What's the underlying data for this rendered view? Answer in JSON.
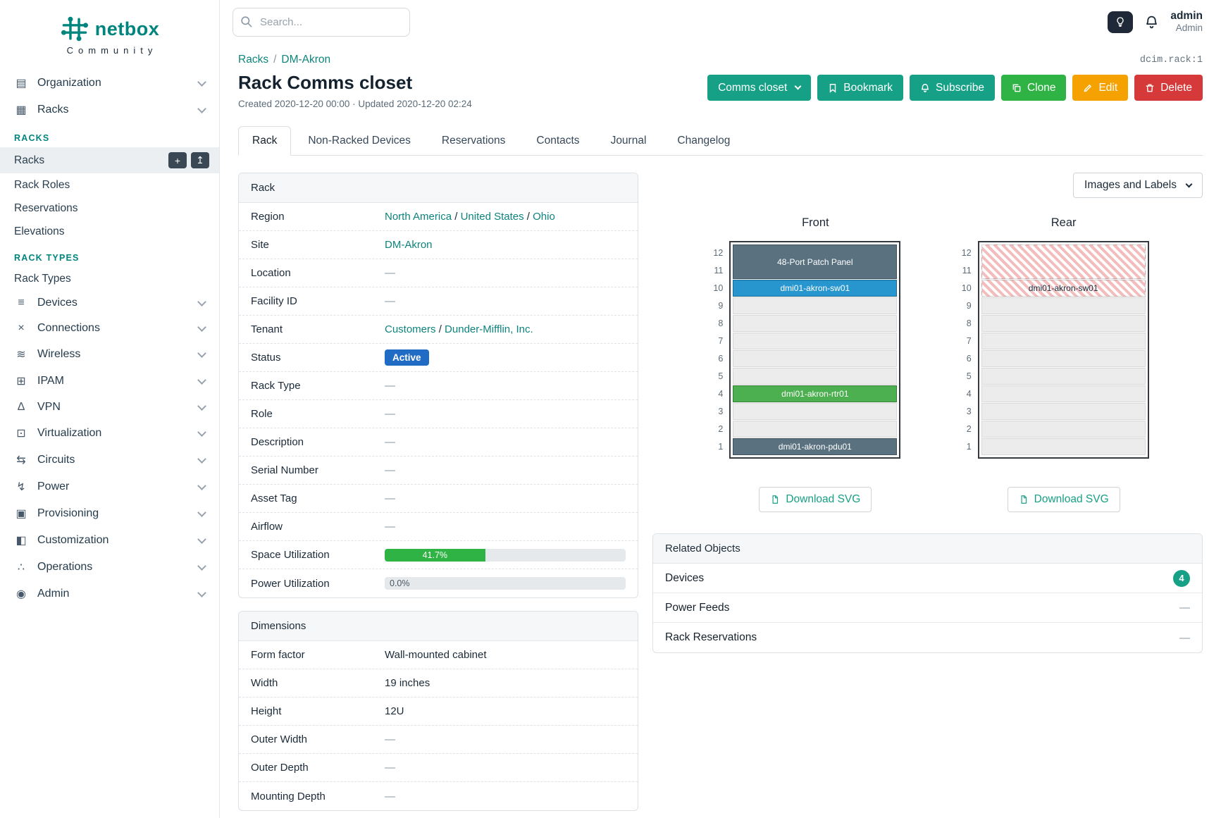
{
  "brand": {
    "name": "netbox",
    "subtitle": "Community"
  },
  "topbar": {
    "search_placeholder": "Search...",
    "user_name": "admin",
    "user_role": "Admin"
  },
  "object_ref": "dcim.rack:1",
  "breadcrumb": {
    "separator": "/",
    "items": [
      {
        "label": "Racks"
      },
      {
        "label": "DM-Akron"
      }
    ]
  },
  "header": {
    "title": "Rack Comms closet",
    "meta": "Created 2020-12-20 00:00 · Updated 2020-12-20 02:24",
    "actions": {
      "context": "Comms closet",
      "bookmark": "Bookmark",
      "subscribe": "Subscribe",
      "clone": "Clone",
      "edit": "Edit",
      "delete": "Delete"
    }
  },
  "tabs": [
    {
      "label": "Rack",
      "active": true
    },
    {
      "label": "Non-Racked Devices"
    },
    {
      "label": "Reservations"
    },
    {
      "label": "Contacts"
    },
    {
      "label": "Journal"
    },
    {
      "label": "Changelog"
    }
  ],
  "icons": {
    "organization-icon": "▤",
    "racks-icon": "▦",
    "devices-icon": "≡",
    "connections-icon": "×",
    "wireless-icon": "≋",
    "ipam-icon": "⊞",
    "vpn-icon": "∆",
    "virtualization-icon": "⊡",
    "circuits-icon": "⇆",
    "power-icon": "↯",
    "provisioning-icon": "▣",
    "customization-icon": "◧",
    "operations-icon": "∴",
    "admin-icon": "◉"
  },
  "sidebar": {
    "items": [
      {
        "icon": "organization-icon",
        "label": "Organization"
      },
      {
        "icon": "racks-icon",
        "label": "Racks",
        "expanded": true,
        "sections": [
          {
            "heading": "RACKS",
            "links": [
              {
                "label": "Racks",
                "active": true,
                "buttons": [
                  "add",
                  "import"
                ]
              },
              {
                "label": "Rack Roles"
              },
              {
                "label": "Reservations"
              },
              {
                "label": "Elevations"
              }
            ]
          },
          {
            "heading": "RACK TYPES",
            "links": [
              {
                "label": "Rack Types"
              }
            ]
          }
        ]
      },
      {
        "icon": "devices-icon",
        "label": "Devices"
      },
      {
        "icon": "connections-icon",
        "label": "Connections"
      },
      {
        "icon": "wireless-icon",
        "label": "Wireless"
      },
      {
        "icon": "ipam-icon",
        "label": "IPAM"
      },
      {
        "icon": "vpn-icon",
        "label": "VPN"
      },
      {
        "icon": "virtualization-icon",
        "label": "Virtualization"
      },
      {
        "icon": "circuits-icon",
        "label": "Circuits"
      },
      {
        "icon": "power-icon",
        "label": "Power"
      },
      {
        "icon": "provisioning-icon",
        "label": "Provisioning"
      },
      {
        "icon": "customization-icon",
        "label": "Customization"
      },
      {
        "icon": "operations-icon",
        "label": "Operations"
      },
      {
        "icon": "admin-icon",
        "label": "Admin"
      }
    ]
  },
  "rack_panel": {
    "title": "Rack",
    "rows": [
      {
        "label": "Region",
        "links": [
          "North America",
          "United States",
          "Ohio"
        ]
      },
      {
        "label": "Site",
        "links": [
          "DM-Akron"
        ]
      },
      {
        "label": "Location",
        "value": "—"
      },
      {
        "label": "Facility ID",
        "value": "—"
      },
      {
        "label": "Tenant",
        "links": [
          "Customers",
          "Dunder-Mifflin, Inc."
        ]
      },
      {
        "label": "Status",
        "badge": "Active"
      },
      {
        "label": "Rack Type",
        "value": "—"
      },
      {
        "label": "Role",
        "value": "—"
      },
      {
        "label": "Description",
        "value": "—"
      },
      {
        "label": "Serial Number",
        "value": "—"
      },
      {
        "label": "Asset Tag",
        "value": "—"
      },
      {
        "label": "Airflow",
        "value": "—"
      },
      {
        "label": "Space Utilization",
        "progress": {
          "percent": 41.7,
          "label": "41.7%",
          "color": "#2fb344"
        }
      },
      {
        "label": "Power Utilization",
        "progress": {
          "percent": 0,
          "label": "0.0%",
          "color": "#2fb344"
        }
      }
    ]
  },
  "dimensions_panel": {
    "title": "Dimensions",
    "rows": [
      {
        "label": "Form factor",
        "value": "Wall-mounted cabinet"
      },
      {
        "label": "Width",
        "value": "19 inches"
      },
      {
        "label": "Height",
        "value": "12U"
      },
      {
        "label": "Outer Width",
        "value": "—"
      },
      {
        "label": "Outer Depth",
        "value": "—"
      },
      {
        "label": "Mounting Depth",
        "value": "—"
      }
    ]
  },
  "elevations": {
    "toolbar_select": "Images and Labels",
    "download_label": "Download SVG",
    "units": [
      12,
      11,
      10,
      9,
      8,
      7,
      6,
      5,
      4,
      3,
      2,
      1
    ],
    "views": [
      {
        "name": "Front",
        "slots": [
          {
            "span": 2,
            "label": "48-Port Patch Panel",
            "type": "dark"
          },
          {
            "span": 1,
            "label": "dmi01-akron-sw01",
            "type": "blue"
          },
          {
            "span": 1,
            "type": "empty"
          },
          {
            "span": 1,
            "type": "empty"
          },
          {
            "span": 1,
            "type": "empty"
          },
          {
            "span": 1,
            "type": "empty"
          },
          {
            "span": 1,
            "type": "empty"
          },
          {
            "span": 1,
            "label": "dmi01-akron-rtr01",
            "type": "green"
          },
          {
            "span": 1,
            "type": "empty"
          },
          {
            "span": 1,
            "type": "empty"
          },
          {
            "span": 1,
            "label": "dmi01-akron-pdu01",
            "type": "dark"
          }
        ]
      },
      {
        "name": "Rear",
        "slots": [
          {
            "span": 2,
            "type": "striped"
          },
          {
            "span": 1,
            "label": "dmi01-akron-sw01",
            "type": "striped"
          },
          {
            "span": 1,
            "type": "empty"
          },
          {
            "span": 1,
            "type": "empty"
          },
          {
            "span": 1,
            "type": "empty"
          },
          {
            "span": 1,
            "type": "empty"
          },
          {
            "span": 1,
            "type": "empty"
          },
          {
            "span": 1,
            "type": "empty"
          },
          {
            "span": 1,
            "type": "empty"
          },
          {
            "span": 1,
            "type": "empty"
          },
          {
            "span": 1,
            "type": "empty"
          }
        ]
      }
    ]
  },
  "related_objects": {
    "title": "Related Objects",
    "rows": [
      {
        "label": "Devices",
        "badge": "4"
      },
      {
        "label": "Power Feeds",
        "value": "—"
      },
      {
        "label": "Rack Reservations",
        "value": "—"
      }
    ]
  }
}
